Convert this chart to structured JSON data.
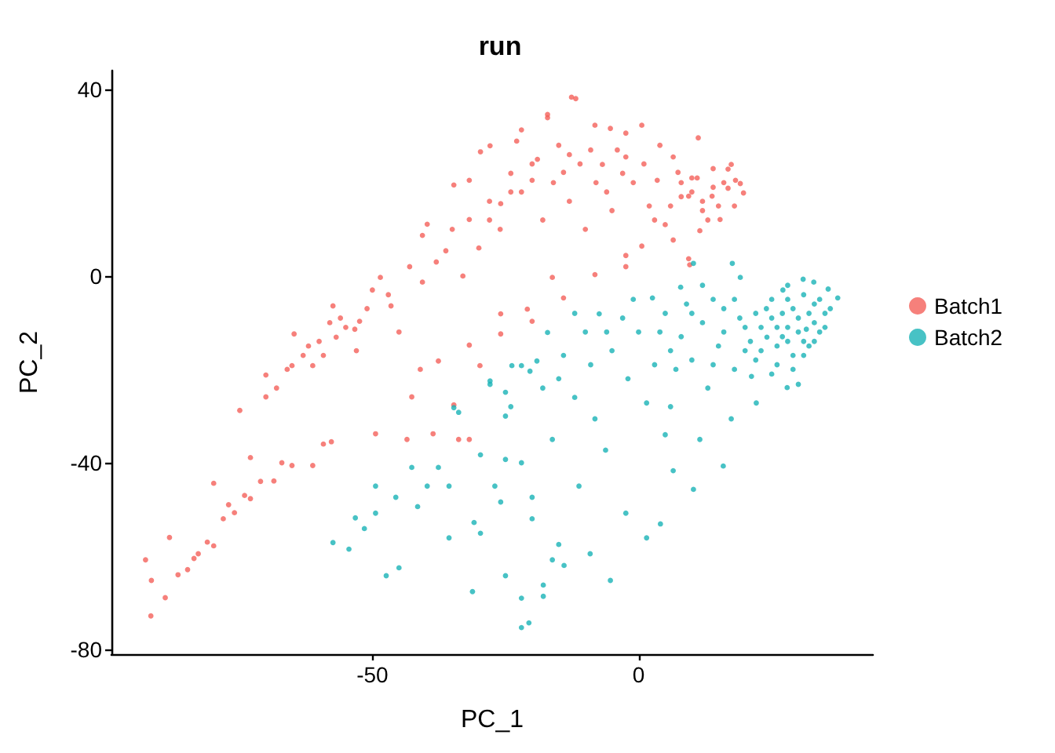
{
  "chart_data": {
    "type": "scatter",
    "title": "run",
    "xlabel": "PC_1",
    "ylabel": "PC_2",
    "xlim": [
      -99,
      44
    ],
    "ylim": [
      -81,
      44
    ],
    "xticks": [
      -50,
      0
    ],
    "yticks": [
      -80,
      -40,
      0,
      40
    ],
    "grid": false,
    "legend": "right",
    "marker": "circle",
    "series": [
      {
        "name": "Batch1",
        "color": "#f4605a",
        "x": [
          -92.6,
          -91.6,
          -91.5,
          -88.9,
          -88.1,
          -86.5,
          -84.7,
          -83.5,
          -82.7,
          -81,
          -79.8,
          -79.8,
          -78,
          -77,
          -75.9,
          -74,
          -72.9,
          -72.9,
          -71,
          -68.5,
          -67,
          -65.1,
          -61.2,
          -59.2,
          -57.7,
          -74.9,
          -70,
          -70,
          -68,
          -66,
          -65.1,
          -64.7,
          -63,
          -61.2,
          -60,
          -59.2,
          -58,
          -57.4,
          -56.8,
          -55,
          -53.3,
          -52.4,
          -51,
          -50,
          -49.4,
          -48.5,
          -47,
          -46.5,
          -45,
          -43.5,
          -43,
          -42.6,
          -41,
          -40.6,
          -40.6,
          -39.7,
          -38.6,
          -38,
          -37.6,
          -36.2,
          -35,
          -34.7,
          -34.7,
          -33.8,
          -33,
          -31.8,
          -31.8,
          -31.8,
          -31.8,
          -30,
          -29.8,
          -29.7,
          -28,
          -27.9,
          -26,
          -25.9,
          -25.9,
          -25.9,
          -24,
          -22.9,
          -22,
          -22,
          -20.9,
          -20,
          -20,
          -19,
          -18,
          -17.1,
          -17.1,
          -16.2,
          -15,
          -14.1,
          -14.1,
          -13,
          -12.6,
          -11.8,
          -11,
          -10,
          -8.2,
          -8.2,
          -8,
          -6.8,
          -5.3,
          -5,
          -4,
          -2.4,
          -2.4,
          -2.4,
          -2.4,
          -1,
          0.6,
          0.6,
          1,
          2,
          3.5,
          4,
          5,
          6.5,
          6.5,
          7.4,
          8,
          9.4,
          9.4,
          9.6,
          10,
          11.2,
          11.5,
          12,
          13.8,
          14,
          15.3,
          16,
          16.8,
          16.8,
          17.4,
          18.2,
          19.1,
          19.7,
          18,
          13,
          10,
          12,
          14,
          15,
          11,
          8,
          6,
          3,
          -3,
          -6,
          -9,
          -13,
          -16,
          -20,
          -24,
          -28,
          -53,
          -56,
          -62
        ],
        "values": [
          -60.8,
          -72.8,
          -65.2,
          -68.9,
          -56,
          -64,
          -62.9,
          -60.5,
          -59.5,
          -57,
          -57.8,
          -44.4,
          -52,
          -49,
          -50.7,
          -47,
          -47.7,
          -38.9,
          -44,
          -43.9,
          -40,
          -40.6,
          -40.6,
          -36,
          -35.5,
          -28.8,
          -25.9,
          -21.2,
          -24,
          -20,
          -19.2,
          -12.4,
          -17,
          -19.2,
          -14,
          -17,
          -10,
          -6.4,
          -13.1,
          -11,
          -11.4,
          -9.7,
          -7,
          -3,
          -33.8,
          -0.3,
          -4,
          -6.4,
          -12,
          -35,
          2,
          -25.9,
          -20,
          -1.3,
          8.7,
          11.1,
          -33.8,
          3,
          -18.2,
          5.4,
          10,
          19.5,
          -27.6,
          -35,
          0,
          12.1,
          20.5,
          -35,
          -14.8,
          6,
          -19.2,
          26.6,
          16,
          27.9,
          10,
          15.5,
          -8.1,
          -12.4,
          22,
          28.9,
          31.3,
          18,
          -7.1,
          20.5,
          -9.7,
          25,
          12,
          34.6,
          33.9,
          -0.3,
          28,
          22.2,
          -4.7,
          16,
          38.3,
          38,
          24,
          10,
          32.3,
          0.3,
          20,
          23.9,
          31.6,
          14,
          27,
          25.5,
          30.6,
          4.4,
          2,
          20,
          32.3,
          6.4,
          24,
          15,
          20.5,
          28,
          11,
          25.5,
          7.7,
          22.2,
          17,
          17.1,
          3.7,
          2.4,
          21,
          29.6,
          9.7,
          14,
          17.1,
          23,
          12.1,
          20,
          18.8,
          22.9,
          23.9,
          20.5,
          19.8,
          17.8,
          15,
          12,
          18,
          16,
          19,
          15,
          21,
          20,
          15,
          12,
          22,
          18,
          27,
          26,
          20,
          24,
          18,
          12,
          -16,
          -9,
          -15
        ]
      },
      {
        "name": "Batch2",
        "color": "#19b3b7",
        "x": [
          37.4,
          35.6,
          35,
          34,
          33,
          32.9,
          32,
          31.5,
          30.9,
          30,
          30,
          29,
          28,
          27.9,
          27.1,
          27,
          26,
          25,
          24.1,
          23,
          22.1,
          21.2,
          20,
          19.1,
          18,
          17.6,
          17.4,
          16,
          15.9,
          15,
          13,
          12,
          11.5,
          10.3,
          10.3,
          10,
          8,
          7.9,
          6.5,
          6,
          5,
          4.1,
          3,
          2.6,
          1.5,
          1.5,
          0,
          -2,
          -2.4,
          -3,
          -5.3,
          -5,
          -6.2,
          -7.4,
          -8.2,
          -9,
          -9.1,
          -10,
          -11.2,
          -12,
          -14.1,
          -15,
          -15,
          -16.2,
          -16.2,
          -17.1,
          -17.9,
          -17.9,
          -19.1,
          -20,
          -20.6,
          -20.4,
          -22,
          -22,
          -22,
          -23.8,
          -25,
          -25,
          -25,
          -25.9,
          -25,
          -27.9,
          -27.9,
          -29.7,
          -29.7,
          -30.9,
          -31.2,
          -33.8,
          -34.7,
          -35.6,
          -35.6,
          -37.6,
          -39.7,
          -41.5,
          -42.6,
          -45,
          -45.6,
          -47.4,
          -49.4,
          -49.4,
          -51.5,
          -53.2,
          -54.4,
          -57.4,
          33,
          31,
          29,
          28,
          26,
          25,
          22,
          21,
          19,
          14,
          9,
          6,
          36,
          35,
          34,
          33,
          32,
          31,
          31,
          30,
          29,
          28,
          28,
          27,
          26,
          25,
          24,
          23,
          22,
          20,
          18,
          16,
          14,
          12,
          10,
          7,
          4,
          -1,
          -6,
          -12,
          -18,
          -24,
          -20,
          -14,
          -22,
          -27,
          5
        ],
        "values": [
          -4.7,
          -2.8,
          -8,
          -12,
          -6,
          -1.3,
          -15,
          -11.4,
          -0.7,
          -23.2,
          -9,
          -17,
          -5,
          -23.9,
          -3,
          -13,
          -19,
          -9,
          -13.1,
          -16,
          -27.2,
          -21.5,
          -11,
          -0.3,
          -20,
          2.7,
          -30.6,
          -7,
          -40.7,
          -15,
          -24,
          -10,
          -35,
          2.7,
          -45.7,
          -18,
          -13,
          -2.4,
          -41.7,
          -28,
          -8,
          -53.1,
          -19,
          -4.7,
          -27.2,
          -56.1,
          -12,
          -22,
          -50.8,
          -9,
          -65.2,
          -16,
          -37.3,
          -8.1,
          -30.6,
          -19,
          -59.5,
          -12,
          -45,
          -26,
          -17,
          -57.5,
          -22,
          -35,
          -60.8,
          -12.1,
          -66.2,
          -68.6,
          -18.2,
          -47.4,
          -74.3,
          -20.4,
          -75.3,
          -19.2,
          -40,
          -19.2,
          -24.9,
          -39.3,
          -64.2,
          -48.4,
          -30,
          -23.2,
          -22.5,
          -38.3,
          -55.1,
          -52.8,
          -67.6,
          -29.2,
          -28.2,
          -56.1,
          -45,
          -41,
          -45,
          -49.4,
          -41,
          -62.5,
          -47.4,
          -64.2,
          -45,
          -50.8,
          -54.1,
          -51.8,
          -58.5,
          -57.1,
          -10,
          -14,
          -7,
          -11,
          -15,
          -5,
          -8,
          -14,
          -9,
          -5,
          -6,
          -16,
          -7,
          -11,
          -5,
          -14,
          -8,
          -4,
          -17,
          -12,
          -20,
          -14,
          -2,
          -8,
          -11,
          -21,
          -7,
          -11,
          -18,
          -16,
          -5,
          -12,
          -19,
          -2,
          -8,
          -20,
          -12,
          -5,
          -12,
          -8,
          -24,
          -28,
          -52,
          -62,
          -69,
          -45,
          -34
        ]
      }
    ]
  }
}
